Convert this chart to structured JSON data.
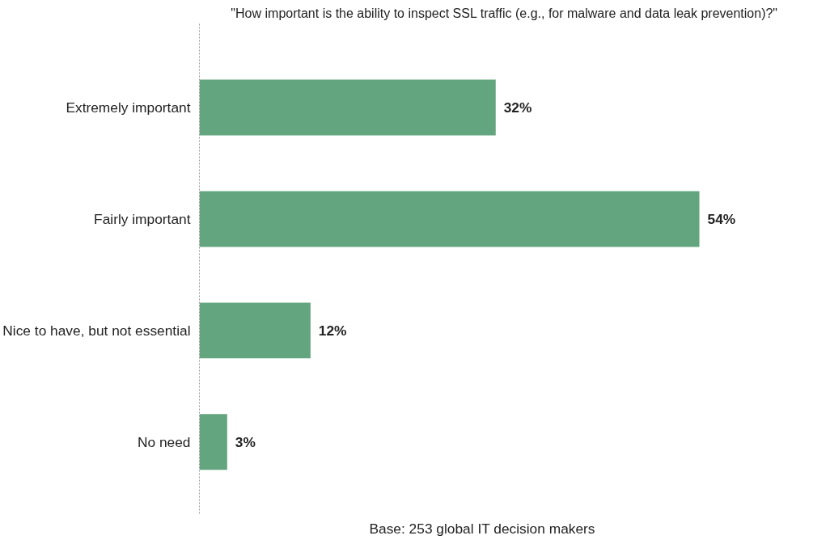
{
  "chart_data": {
    "type": "bar",
    "orientation": "horizontal",
    "title": "\"How important is the ability to inspect SSL traffic (e.g., for malware and data leak prevention)?\"",
    "categories": [
      "Extremely important",
      "Fairly important",
      "Nice to have, but not essential",
      "No need"
    ],
    "values": [
      32,
      54,
      12,
      3
    ],
    "value_labels": [
      "32%",
      "54%",
      "12%",
      "3%"
    ],
    "color": "#62a57e",
    "annotations": [
      "Base: 253 global IT decision makers"
    ],
    "grid": false
  }
}
